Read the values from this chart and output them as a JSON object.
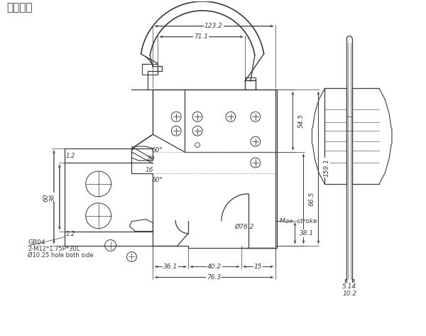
{
  "title": "刀组图面",
  "title_fontsize": 11,
  "bg_color": "#ffffff",
  "line_color": "#3a3a3a",
  "dim_color": "#3a3a3a",
  "dim_fontsize": 6.5,
  "annotations": {
    "dim_123_2": "123.2",
    "dim_71_1": "71.1",
    "dim_54_5": "54.5",
    "dim_66_5": "66.5",
    "dim_159_1": "159.1",
    "dim_38_1": "38.1",
    "dim_76_2": "Ø76.2",
    "dim_36_1": "36.1",
    "dim_40_2": "40.2",
    "dim_76_3": "76.3",
    "dim_15": "15",
    "max_stroke": "Max. stroke",
    "dim_60": "60",
    "dim_36": "36",
    "dim_12a": "1.2",
    "dim_12b": "1.2",
    "dim_16": "16",
    "dim_20": "20",
    "dim_60deg_a": "60°",
    "dim_60deg_b": "60°",
    "gb04": "GB04",
    "thread": "2-M12*1.75P*30L",
    "hole": "Ø10.25 hole both side",
    "dim_5_14": "5.14",
    "dim_10_2": "10.2"
  }
}
